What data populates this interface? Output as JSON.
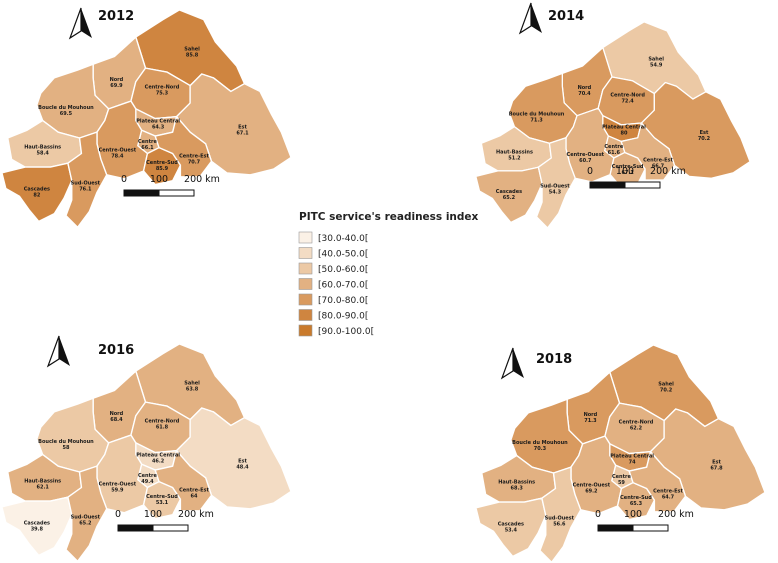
{
  "legend": {
    "title": "PITC service's readiness index",
    "classes": [
      {
        "label": "[30.0-40.0[",
        "color": "#fbf1e6"
      },
      {
        "label": "[40.0-50.0[",
        "color": "#f3dcc4"
      },
      {
        "label": "[50.0-60.0[",
        "color": "#ecc9a5"
      },
      {
        "label": "[60.0-70.0[",
        "color": "#e2b182"
      },
      {
        "label": "[70.0-80.0[",
        "color": "#d99a5f"
      },
      {
        "label": "[80.0-90.0[",
        "color": "#cf8540"
      },
      {
        "label": "[90.0-100.0[",
        "color": "#c97a2c"
      }
    ]
  },
  "scale": {
    "ticks": [
      "0",
      "100",
      "200 km"
    ]
  },
  "maps": [
    {
      "year": "2012",
      "regions": [
        {
          "key": "sahel",
          "name": "Sahel",
          "value": "85.8"
        },
        {
          "key": "nord",
          "name": "Nord",
          "value": "69.9"
        },
        {
          "key": "centre_nord",
          "name": "Centre-Nord",
          "value": "75.3"
        },
        {
          "key": "boucle",
          "name": "Boucle du Mouhoun",
          "value": "69.5"
        },
        {
          "key": "plateau",
          "name": "Plateau Central",
          "value": "64.3"
        },
        {
          "key": "centre",
          "name": "Centre",
          "value": "66.1"
        },
        {
          "key": "est",
          "name": "Est",
          "value": "67.1"
        },
        {
          "key": "centre_ouest",
          "name": "Centre-Ouest",
          "value": "78.4"
        },
        {
          "key": "centre_sud",
          "name": "Centre-Sud",
          "value": "85.9"
        },
        {
          "key": "centre_est",
          "name": "Centre-Est",
          "value": "70.7"
        },
        {
          "key": "haut_bassins",
          "name": "Haut-Bassins",
          "value": "58.4"
        },
        {
          "key": "cascades",
          "name": "Cascades",
          "value": "82"
        },
        {
          "key": "sud_ouest",
          "name": "Sud-Ouest",
          "value": "76.1"
        }
      ]
    },
    {
      "year": "2014",
      "regions": [
        {
          "key": "sahel",
          "name": "Sahel",
          "value": "54.9"
        },
        {
          "key": "nord",
          "name": "Nord",
          "value": "70.4"
        },
        {
          "key": "centre_nord",
          "name": "Centre-Nord",
          "value": "72.4"
        },
        {
          "key": "boucle",
          "name": "Boucle du Mouhoun",
          "value": "71.3"
        },
        {
          "key": "plateau",
          "name": "Plateau Central",
          "value": "80"
        },
        {
          "key": "centre",
          "name": "Centre",
          "value": "61.6"
        },
        {
          "key": "est",
          "name": "Est",
          "value": "70.2"
        },
        {
          "key": "centre_ouest",
          "name": "Centre-Ouest",
          "value": "60.7"
        },
        {
          "key": "centre_sud",
          "name": "Centre-Sud",
          "value": "67.1"
        },
        {
          "key": "centre_est",
          "name": "Centre-Est",
          "value": "66.7"
        },
        {
          "key": "haut_bassins",
          "name": "Haut-Bassins",
          "value": "51.2"
        },
        {
          "key": "cascades",
          "name": "Cascades",
          "value": "65.2"
        },
        {
          "key": "sud_ouest",
          "name": "Sud-Ouest",
          "value": "54.3"
        }
      ]
    },
    {
      "year": "2016",
      "regions": [
        {
          "key": "sahel",
          "name": "Sahel",
          "value": "63.8"
        },
        {
          "key": "nord",
          "name": "Nord",
          "value": "68.4"
        },
        {
          "key": "centre_nord",
          "name": "Centre-Nord",
          "value": "61.8"
        },
        {
          "key": "boucle",
          "name": "Boucle du Mouhoun",
          "value": "58"
        },
        {
          "key": "plateau",
          "name": "Plateau Central",
          "value": "46.2"
        },
        {
          "key": "centre",
          "name": "Centre",
          "value": "49.4"
        },
        {
          "key": "est",
          "name": "Est",
          "value": "48.4"
        },
        {
          "key": "centre_ouest",
          "name": "Centre-Ouest",
          "value": "59.9"
        },
        {
          "key": "centre_sud",
          "name": "Centre-Sud",
          "value": "53.1"
        },
        {
          "key": "centre_est",
          "name": "Centre-Est",
          "value": "64"
        },
        {
          "key": "haut_bassins",
          "name": "Haut-Bassins",
          "value": "62.1"
        },
        {
          "key": "cascades",
          "name": "Cascades",
          "value": "39.8"
        },
        {
          "key": "sud_ouest",
          "name": "Sud-Ouest",
          "value": "65.2"
        }
      ]
    },
    {
      "year": "2018",
      "regions": [
        {
          "key": "sahel",
          "name": "Sahel",
          "value": "70.2"
        },
        {
          "key": "nord",
          "name": "Nord",
          "value": "71.3"
        },
        {
          "key": "centre_nord",
          "name": "Centre-Nord",
          "value": "62.2"
        },
        {
          "key": "boucle",
          "name": "Boucle du Mouhoun",
          "value": "70.3"
        },
        {
          "key": "plateau",
          "name": "Plateau Central",
          "value": "74"
        },
        {
          "key": "centre",
          "name": "Centre",
          "value": "59"
        },
        {
          "key": "est",
          "name": "Est",
          "value": "67.8"
        },
        {
          "key": "centre_ouest",
          "name": "Centre-Ouest",
          "value": "69.2"
        },
        {
          "key": "centre_sud",
          "name": "Centre-Sud",
          "value": "65.3"
        },
        {
          "key": "centre_est",
          "name": "Centre-Est",
          "value": "64.7"
        },
        {
          "key": "haut_bassins",
          "name": "Haut-Bassins",
          "value": "68.3"
        },
        {
          "key": "cascades",
          "name": "Cascades",
          "value": "53.4"
        },
        {
          "key": "sud_ouest",
          "name": "Sud-Ouest",
          "value": "56.6"
        }
      ]
    }
  ]
}
